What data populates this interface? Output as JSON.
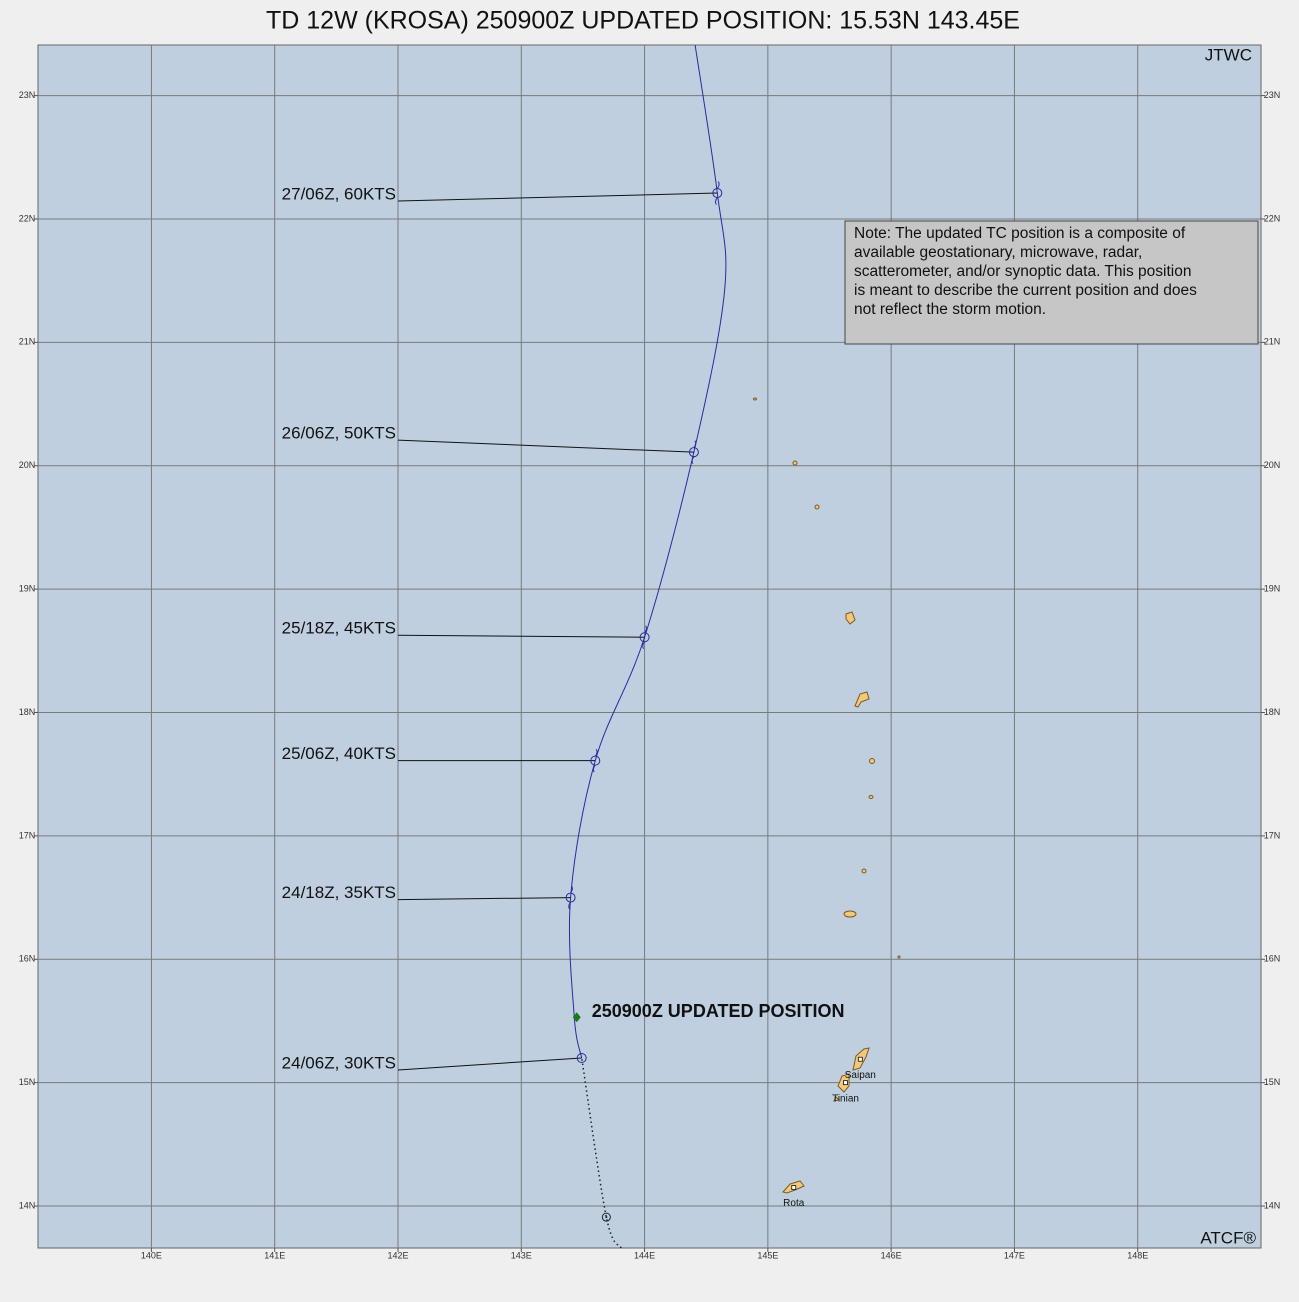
{
  "title": "TD 12W (KROSA) 250900Z UPDATED POSITION: 15.53N 143.45E",
  "agency": "JTWC",
  "footer": "ATCF®",
  "note": [
    "Note:  The updated TC position is a composite of",
    "available geostationary, microwave, radar,",
    "scatterometer, and/or synoptic data.   This position",
    "is meant to describe the current position and does",
    "not reflect the storm motion."
  ],
  "map": {
    "xlim": [
      139.08,
      149.0
    ],
    "ylim": [
      13.66,
      23.41
    ],
    "xticks": [
      {
        "value": 140,
        "label": "140E"
      },
      {
        "value": 141,
        "label": "141E"
      },
      {
        "value": 142,
        "label": "142E"
      },
      {
        "value": 143,
        "label": "143E"
      },
      {
        "value": 144,
        "label": "144E"
      },
      {
        "value": 145,
        "label": "145E"
      },
      {
        "value": 146,
        "label": "146E"
      },
      {
        "value": 147,
        "label": "147E"
      },
      {
        "value": 148,
        "label": "148E"
      }
    ],
    "yticks": [
      {
        "value": 14,
        "label": "14N"
      },
      {
        "value": 15,
        "label": "15N"
      },
      {
        "value": 16,
        "label": "16N"
      },
      {
        "value": 17,
        "label": "17N"
      },
      {
        "value": 18,
        "label": "18N"
      },
      {
        "value": 19,
        "label": "19N"
      },
      {
        "value": 20,
        "label": "20N"
      },
      {
        "value": 21,
        "label": "21N"
      },
      {
        "value": 22,
        "label": "22N"
      },
      {
        "value": 23,
        "label": "23N"
      }
    ],
    "grid": true,
    "track": {
      "color": "#2a2aa0",
      "lon": [
        143.49,
        143.43,
        143.4,
        143.6,
        144.0,
        144.4,
        144.65,
        144.59,
        144.41
      ],
      "lat": [
        15.2,
        15.53,
        16.5,
        17.61,
        18.61,
        20.11,
        21.43,
        22.21,
        23.41
      ]
    },
    "past_track": {
      "lon": [
        143.81,
        143.69,
        143.49
      ],
      "lat": [
        13.66,
        13.91,
        15.2
      ]
    },
    "past_position": {
      "lon": 143.69,
      "lat": 13.91
    },
    "current": {
      "label": "250900Z UPDATED POSITION",
      "lon": 143.45,
      "lat": 15.53,
      "color": "#1a7a1a"
    },
    "forecast": [
      {
        "label": "24/06Z,  30KTS",
        "lon": 143.49,
        "lat": 15.2
      },
      {
        "label": "24/18Z,  35KTS",
        "lon": 143.4,
        "lat": 16.5
      },
      {
        "label": "25/06Z,  40KTS",
        "lon": 143.6,
        "lat": 17.61
      },
      {
        "label": "25/18Z,  45KTS",
        "lon": 144.0,
        "lat": 18.61
      },
      {
        "label": "26/06Z,  50KTS",
        "lon": 144.4,
        "lat": 20.11
      },
      {
        "label": "27/06Z,  60KTS",
        "lon": 144.59,
        "lat": 22.21
      }
    ],
    "places": [
      {
        "name": "Saipan",
        "lon": 145.75,
        "lat": 15.19
      },
      {
        "name": "Tinian",
        "lon": 145.63,
        "lat": 15.0
      },
      {
        "name": "Rota",
        "lon": 145.21,
        "lat": 14.15
      }
    ]
  }
}
